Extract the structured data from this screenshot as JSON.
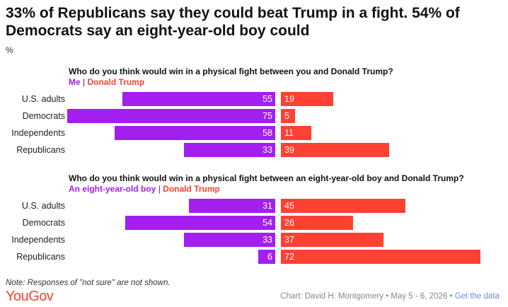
{
  "title": "33% of Republicans say they could beat Trump in a fight. 54% of Democrats say an eight-year-old boy could",
  "unit_label": "%",
  "colors": {
    "series_a": "#a21ff0",
    "series_b": "#ff4133"
  },
  "chart_data": [
    {
      "type": "bar",
      "title": "Who do you think would win in a physical fight between you and Donald Trump?",
      "categories": [
        "U.S. adults",
        "Democrats",
        "Independents",
        "Republicans"
      ],
      "series": [
        {
          "name": "Me",
          "values": [
            55,
            75,
            58,
            33
          ]
        },
        {
          "name": "Donald Trump",
          "values": [
            19,
            5,
            11,
            39
          ]
        }
      ]
    },
    {
      "type": "bar",
      "title": "Who do you think would win in a physical fight between an eight-year-old boy and Donald Trump?",
      "categories": [
        "U.S. adults",
        "Democrats",
        "Independents",
        "Republicans"
      ],
      "series": [
        {
          "name": "An eight-year-old boy",
          "values": [
            31,
            54,
            33,
            6
          ]
        },
        {
          "name": "Donald Trump",
          "values": [
            45,
            26,
            37,
            72
          ]
        }
      ]
    }
  ],
  "legend_separator": "|",
  "note": "Note: Responses of \"not sure\" are not shown.",
  "logo_text": "YouGov",
  "credit": {
    "text": "Chart: David H. Montgomery • May 5 - 6, 2026 •",
    "link": "Get the data"
  }
}
